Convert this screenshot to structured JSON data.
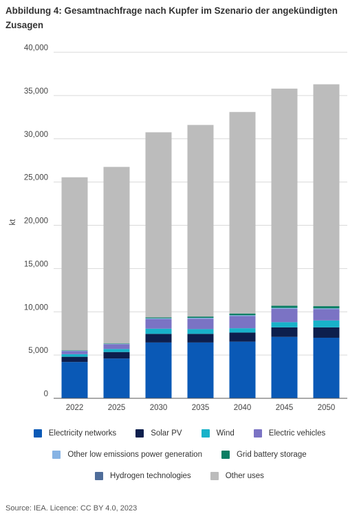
{
  "title": "Abbildung 4: Gesamtnachfrage nach Kupfer im Szenario der angekündigten Zusagen",
  "source": "Source: IEA. Licence: CC BY 4.0, 2023",
  "chart_data": {
    "type": "bar",
    "stacked": true,
    "ylabel": "kt",
    "ylim": [
      0,
      40000
    ],
    "yticks": [
      0,
      5000,
      10000,
      15000,
      20000,
      25000,
      30000,
      35000,
      40000
    ],
    "ytick_labels": [
      "0",
      "5,000",
      "10,000",
      "15,000",
      "20,000",
      "25,000",
      "30,000",
      "35,000",
      "40,000"
    ],
    "categories": [
      "2022",
      "2025",
      "2030",
      "2035",
      "2040",
      "2045",
      "2050"
    ],
    "grid": "horizontal",
    "legend_position": "bottom",
    "series": [
      {
        "name": "Electricity networks",
        "color": "#0a59b6",
        "values": [
          4200,
          4600,
          6450,
          6450,
          6550,
          7100,
          7000
        ]
      },
      {
        "name": "Solar PV",
        "color": "#0d1f4d",
        "values": [
          600,
          750,
          1000,
          1000,
          1050,
          1100,
          1200
        ]
      },
      {
        "name": "Wind",
        "color": "#18b2c9",
        "values": [
          300,
          350,
          600,
          550,
          500,
          600,
          800
        ]
      },
      {
        "name": "Electric vehicles",
        "color": "#7b73c4",
        "values": [
          350,
          550,
          1100,
          1200,
          1400,
          1550,
          1300
        ]
      },
      {
        "name": "Other low emissions power generation",
        "color": "#86b3e4",
        "values": [
          50,
          50,
          100,
          100,
          100,
          100,
          100
        ]
      },
      {
        "name": "Grid battery storage",
        "color": "#0a7e63",
        "values": [
          50,
          50,
          100,
          150,
          200,
          250,
          250
        ]
      },
      {
        "name": "Hydrogen technologies",
        "color": "#4f6d9a",
        "values": [
          0,
          0,
          0,
          0,
          0,
          0,
          0
        ]
      },
      {
        "name": "Other uses",
        "color": "#bcbcbc",
        "values": [
          20000,
          20400,
          21400,
          22150,
          23300,
          25100,
          25650
        ]
      }
    ]
  }
}
